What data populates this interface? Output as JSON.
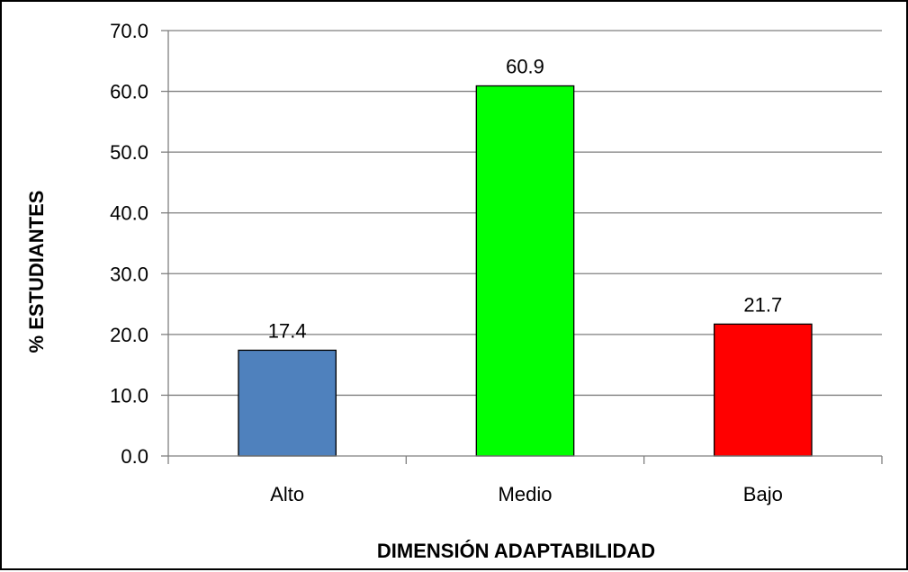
{
  "chart_data": {
    "type": "bar",
    "categories": [
      "Alto",
      "Medio",
      "Bajo"
    ],
    "values": [
      17.4,
      60.9,
      21.7
    ],
    "data_labels": [
      "17.4",
      "60.9",
      "21.7"
    ],
    "colors": [
      "#4f81bd",
      "#00ff00",
      "#ff0000"
    ],
    "xlabel": "DIMENSIÓN ADAPTABILIDAD",
    "ylabel": "% ESTUDIANTES",
    "ylim": [
      0,
      70
    ],
    "yticks": [
      0,
      10,
      20,
      30,
      40,
      50,
      60,
      70
    ],
    "ytick_labels": [
      "0.0",
      "10.0",
      "20.0",
      "30.0",
      "40.0",
      "50.0",
      "60.0",
      "70.0"
    ],
    "grid": true,
    "legend": "none"
  }
}
